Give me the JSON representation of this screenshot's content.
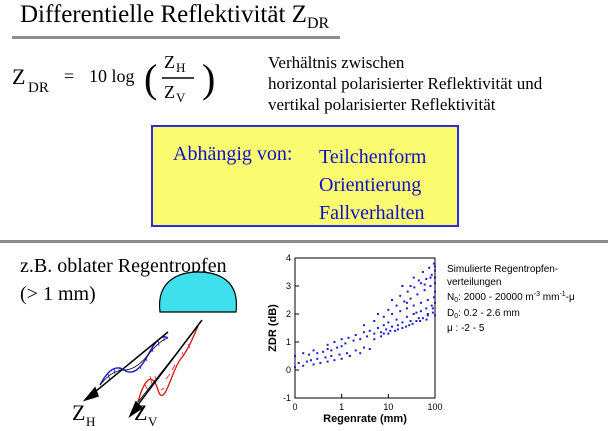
{
  "title": {
    "main": "Differentielle Reflektivität Z",
    "sub": "DR"
  },
  "equation": {
    "lhs_main": "Z",
    "lhs_sub": "DR",
    "equals": "=",
    "coefficient": "10 log",
    "num_main": "Z",
    "num_sub": "H",
    "den_main": "Z",
    "den_sub": "V"
  },
  "explanation": [
    "Verhältnis zwischen",
    "horizontal polarisierter Reflektivität und",
    "vertikal polarisierter Reflektivität"
  ],
  "dependency": {
    "label": "Abhängig von:",
    "items": [
      "Teilchenform",
      "Orientierung",
      "Fallverhalten"
    ]
  },
  "example": {
    "line1": "z.B. oblater Regentropfen",
    "line2": "(> 1 mm)"
  },
  "wave_labels": {
    "h_main": "Z",
    "h_sub": "H",
    "v_main": "Z",
    "v_sub": "V"
  },
  "simulation_note": {
    "line1": "Simulierte Regentropfen-",
    "line2": "verteilungen",
    "n0_prefix": "N",
    "n0_sub": "0",
    "n0_text": ": 2000 - 20000 m",
    "n0_exp1": "-3",
    "n0_mid": " mm",
    "n0_exp2": "-1",
    "n0_suffix": "-μ",
    "d0_prefix": "D",
    "d0_sub": "0",
    "d0_text": ": 0.2 - 2.6 mm",
    "mu_text": "μ   : -2 - 5"
  },
  "colors": {
    "accent_blue": "#2d2dd8",
    "box_fill": "#fbfb6f",
    "drop_fill": "#3fe0ee",
    "rule_gray": "#8c8c8c",
    "wave_red": "#d82020"
  },
  "chart_data": {
    "type": "scatter",
    "xlabel": "Regenrate (mm)",
    "ylabel": "ZDR (dB)",
    "x_scale": "log",
    "xlim": [
      0.1,
      100
    ],
    "ylim": [
      -1,
      4
    ],
    "x_ticks": [
      "0",
      "1",
      "10",
      "100"
    ],
    "y_ticks": [
      "-1",
      "0",
      "1",
      "2",
      "3",
      "4"
    ],
    "series": [
      {
        "color": "#1a1ad8",
        "points": [
          [
            0.1,
            0.5
          ],
          [
            0.15,
            0.6
          ],
          [
            0.2,
            0.55
          ],
          [
            0.25,
            0.7
          ],
          [
            0.3,
            0.6
          ],
          [
            0.4,
            0.65
          ],
          [
            0.5,
            0.75
          ],
          [
            0.6,
            0.7
          ],
          [
            0.8,
            0.8
          ],
          [
            1.0,
            0.85
          ],
          [
            0.12,
            0.25
          ],
          [
            0.18,
            0.3
          ],
          [
            0.22,
            0.35
          ],
          [
            0.3,
            0.4
          ],
          [
            0.45,
            0.45
          ],
          [
            0.6,
            0.5
          ],
          [
            0.9,
            0.55
          ],
          [
            1.3,
            0.6
          ],
          [
            2,
            0.7
          ],
          [
            3,
            0.8
          ],
          [
            0.1,
            0.1
          ],
          [
            0.15,
            0.15
          ],
          [
            0.25,
            0.2
          ],
          [
            0.35,
            0.25
          ],
          [
            0.5,
            0.3
          ],
          [
            0.7,
            0.35
          ],
          [
            1.0,
            0.4
          ],
          [
            1.5,
            0.5
          ],
          [
            2.5,
            0.6
          ],
          [
            4,
            0.75
          ],
          [
            0.5,
            0.9
          ],
          [
            0.7,
            1.0
          ],
          [
            1.0,
            1.1
          ],
          [
            1.4,
            1.15
          ],
          [
            2,
            1.25
          ],
          [
            3,
            1.35
          ],
          [
            4,
            1.4
          ],
          [
            6,
            1.5
          ],
          [
            8,
            1.6
          ],
          [
            10,
            1.7
          ],
          [
            1.2,
            0.95
          ],
          [
            1.8,
            1.05
          ],
          [
            2.5,
            1.1
          ],
          [
            3.5,
            1.2
          ],
          [
            5,
            1.3
          ],
          [
            7,
            1.35
          ],
          [
            9,
            1.45
          ],
          [
            12,
            1.55
          ],
          [
            16,
            1.6
          ],
          [
            20,
            1.7
          ],
          [
            5,
            1.1
          ],
          [
            7,
            1.2
          ],
          [
            10,
            1.3
          ],
          [
            14,
            1.4
          ],
          [
            20,
            1.5
          ],
          [
            28,
            1.6
          ],
          [
            40,
            1.75
          ],
          [
            55,
            1.85
          ],
          [
            70,
            1.95
          ],
          [
            90,
            2.05
          ],
          [
            3,
            1.6
          ],
          [
            5,
            1.75
          ],
          [
            8,
            1.9
          ],
          [
            12,
            2.0
          ],
          [
            18,
            2.1
          ],
          [
            25,
            2.2
          ],
          [
            35,
            2.3
          ],
          [
            50,
            2.4
          ],
          [
            70,
            2.5
          ],
          [
            95,
            2.6
          ],
          [
            6,
            2.0
          ],
          [
            10,
            2.15
          ],
          [
            15,
            2.3
          ],
          [
            22,
            2.45
          ],
          [
            30,
            2.55
          ],
          [
            42,
            2.7
          ],
          [
            60,
            2.85
          ],
          [
            80,
            3.0
          ],
          [
            100,
            3.1
          ],
          [
            40,
            2.05
          ],
          [
            12,
            2.5
          ],
          [
            18,
            2.65
          ],
          [
            26,
            2.8
          ],
          [
            36,
            2.95
          ],
          [
            50,
            3.1
          ],
          [
            65,
            3.25
          ],
          [
            85,
            3.4
          ],
          [
            100,
            3.55
          ],
          [
            30,
            3.0
          ],
          [
            45,
            3.2
          ],
          [
            20,
            3.0
          ],
          [
            35,
            3.3
          ],
          [
            55,
            3.5
          ],
          [
            75,
            3.65
          ],
          [
            95,
            3.8
          ],
          [
            60,
            3.05
          ],
          [
            80,
            3.3
          ],
          [
            100,
            3.7
          ],
          [
            25,
            2.4
          ],
          [
            90,
            2.2
          ],
          [
            15,
            1.8
          ],
          [
            25,
            1.9
          ],
          [
            35,
            2.0
          ],
          [
            50,
            2.1
          ],
          [
            65,
            2.2
          ],
          [
            85,
            2.3
          ],
          [
            100,
            2.4
          ],
          [
            30,
            1.75
          ],
          [
            45,
            1.85
          ],
          [
            70,
            2.0
          ],
          [
            8,
            1.3
          ],
          [
            11,
            1.4
          ],
          [
            16,
            1.45
          ],
          [
            24,
            1.55
          ],
          [
            33,
            1.65
          ],
          [
            48,
            1.75
          ],
          [
            66,
            1.8
          ],
          [
            100,
            1.95
          ],
          [
            100,
            2.8
          ],
          [
            100,
            3.3
          ]
        ]
      }
    ]
  }
}
